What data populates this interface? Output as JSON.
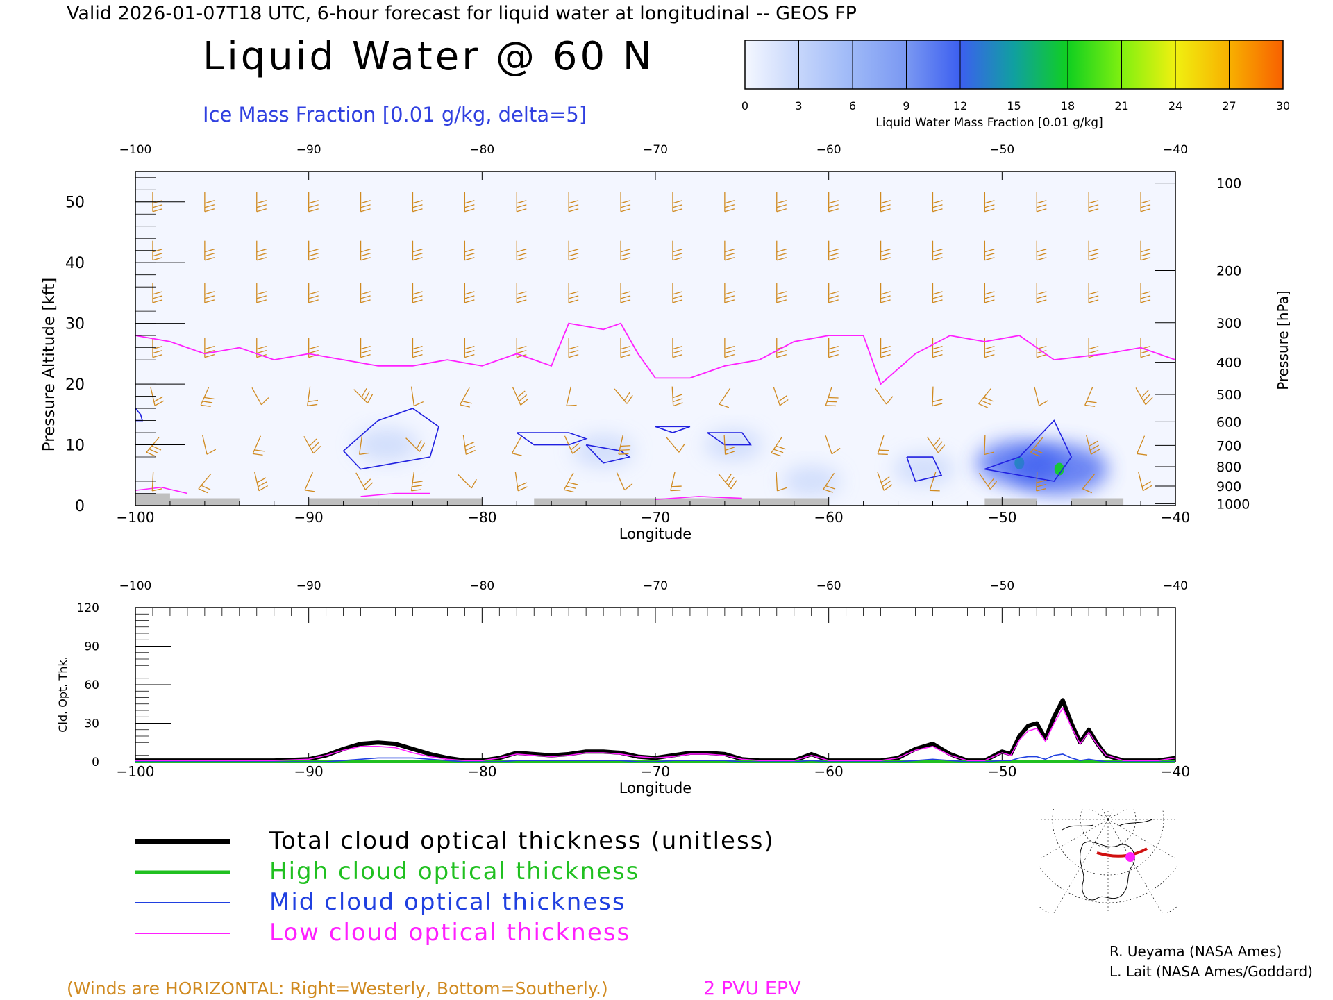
{
  "header": {
    "valid_line": "Valid 2026-01-07T18 UTC, 6-hour forecast for liquid water at longitudinal -- GEOS FP",
    "title": "Liquid Water @ 60 N",
    "subtitle": "Ice Mass Fraction [0.01 g/kg, delta=5]"
  },
  "colorbar": {
    "label": "Liquid Water Mass Fraction [0.01 g/kg]",
    "ticks": [
      "0",
      "3",
      "6",
      "9",
      "12",
      "15",
      "18",
      "21",
      "24",
      "27",
      "30"
    ],
    "colors": [
      "#f4f7ff",
      "#c6d6fb",
      "#9db8f7",
      "#7a98f2",
      "#3c5ff0",
      "#10a0a0",
      "#10cf20",
      "#80f010",
      "#f0f010",
      "#f8b000",
      "#f86000"
    ]
  },
  "chart_data": [
    {
      "type": "heatmap",
      "xlabel": "Longitude",
      "ylabel": "Pressure Altitude [kft]",
      "ylabel_right": "Pressure [hPa]",
      "xlim": [
        -100,
        -40
      ],
      "ylim": [
        0,
        55
      ],
      "xticks": [
        "−100",
        "−90",
        "−80",
        "−70",
        "−60",
        "−50",
        "−40"
      ],
      "yticks": [
        "0",
        "10",
        "20",
        "30",
        "40",
        "50"
      ],
      "pressure_ticks": [
        "100",
        "200",
        "300",
        "400",
        "500",
        "600",
        "700",
        "800",
        "900",
        "1000"
      ],
      "pressure_tick_kft": [
        53.1,
        38.7,
        30.1,
        23.6,
        18.3,
        13.8,
        9.9,
        6.4,
        3.2,
        0.3
      ],
      "epv_2pvu_kft": [
        [
          -100,
          28
        ],
        [
          -98,
          27
        ],
        [
          -96,
          25
        ],
        [
          -94,
          26
        ],
        [
          -92,
          24
        ],
        [
          -90,
          25
        ],
        [
          -88,
          24
        ],
        [
          -86,
          23
        ],
        [
          -84,
          23
        ],
        [
          -82,
          24
        ],
        [
          -80,
          23
        ],
        [
          -78,
          25
        ],
        [
          -76,
          23
        ],
        [
          -75,
          30
        ],
        [
          -73,
          29
        ],
        [
          -72,
          30
        ],
        [
          -71,
          25
        ],
        [
          -70,
          21
        ],
        [
          -68,
          21
        ],
        [
          -66,
          23
        ],
        [
          -64,
          24
        ],
        [
          -62,
          27
        ],
        [
          -60,
          28
        ],
        [
          -58,
          28
        ],
        [
          -57,
          20
        ],
        [
          -55,
          25
        ],
        [
          -53,
          28
        ],
        [
          -51,
          27
        ],
        [
          -49,
          28
        ],
        [
          -47,
          24
        ],
        [
          -44,
          25
        ],
        [
          -42,
          26
        ],
        [
          -40,
          24
        ]
      ],
      "ice_contours": [
        {
          "lon": [
            -88,
            -86,
            -84,
            -82.5,
            -83,
            -85,
            -87,
            -88
          ],
          "kft": [
            9,
            14,
            16,
            13,
            8,
            7,
            6,
            9
          ]
        },
        {
          "lon": [
            -78,
            -75,
            -74,
            -75,
            -77,
            -78
          ],
          "kft": [
            12,
            12,
            11,
            10,
            10,
            12
          ]
        },
        {
          "lon": [
            -74,
            -72,
            -71.5,
            -73,
            -74
          ],
          "kft": [
            10,
            9,
            8,
            7,
            10
          ]
        },
        {
          "lon": [
            -70,
            -68,
            -69,
            -70
          ],
          "kft": [
            13,
            13,
            12,
            13
          ]
        },
        {
          "lon": [
            -67,
            -65,
            -64.5,
            -66,
            -67
          ],
          "kft": [
            12,
            12,
            10,
            10,
            12
          ]
        },
        {
          "lon": [
            -55.5,
            -54,
            -53.5,
            -55,
            -55.5
          ],
          "kft": [
            8,
            8,
            5,
            4,
            8
          ]
        },
        {
          "lon": [
            -51,
            -49,
            -47,
            -46,
            -47,
            -49,
            -51
          ],
          "kft": [
            6,
            8,
            14,
            8,
            4,
            5,
            6
          ]
        },
        {
          "lon": [
            -100,
            -99.7,
            -99.6,
            -100
          ],
          "kft": [
            16,
            15,
            14,
            14
          ]
        }
      ],
      "liquid_blobs": [
        {
          "lon": -85.5,
          "kft": 10,
          "value": 4
        },
        {
          "lon": -73,
          "kft": 9,
          "value": 3
        },
        {
          "lon": -65.5,
          "kft": 10,
          "value": 2
        },
        {
          "lon": -54.5,
          "kft": 6,
          "value": 3
        },
        {
          "lon": -49,
          "kft": 7,
          "value": 12
        },
        {
          "lon": -46.7,
          "kft": 6,
          "value": 16
        },
        {
          "lon": -61,
          "kft": 4,
          "value": 2
        }
      ],
      "winds": {
        "lons": [
          -99,
          -96,
          -93,
          -90,
          -87,
          -84,
          -81,
          -78,
          -75,
          -72,
          -69,
          -66,
          -63,
          -60,
          -57,
          -54,
          -51,
          -48,
          -45,
          -42
        ],
        "kfts": [
          50,
          42,
          35,
          26,
          18,
          10,
          4
        ]
      },
      "footnote": "(Winds are HORIZONTAL: Right=Westerly, Bottom=Southerly.)",
      "epv_label": "2 PVU EPV"
    },
    {
      "type": "line",
      "xlabel": "Longitude",
      "ylabel": "Cld. Opt. Thk.",
      "xlim": [
        -100,
        -40
      ],
      "ylim": [
        0,
        120
      ],
      "xticks": [
        "−100",
        "−90",
        "−80",
        "−70",
        "−60",
        "−50",
        "−40"
      ],
      "yticks": [
        "0",
        "30",
        "60",
        "90",
        "120"
      ],
      "x": [
        -100,
        -98,
        -96,
        -94,
        -92,
        -90,
        -89,
        -88,
        -87,
        -86,
        -85,
        -84,
        -83,
        -82,
        -81,
        -80,
        -79,
        -78,
        -77,
        -76,
        -75,
        -74,
        -73,
        -72,
        -71,
        -70,
        -69,
        -68,
        -67,
        -66,
        -65,
        -64,
        -63,
        -62,
        -61,
        -60,
        -59,
        -58,
        -57,
        -56,
        -55,
        -54,
        -53,
        -52,
        -51,
        -50,
        -49.5,
        -49,
        -48.5,
        -48,
        -47.5,
        -47,
        -46.5,
        -46,
        -45.5,
        -45,
        -44.5,
        -44,
        -43,
        -42,
        -41,
        -40
      ],
      "series": [
        {
          "name": "Total cloud optical thickness (unitless)",
          "color": "#000000",
          "values": [
            1,
            1,
            1,
            1,
            1,
            2,
            5,
            10,
            14,
            15,
            14,
            10,
            6,
            3,
            1,
            1,
            3,
            7,
            6,
            5,
            6,
            8,
            8,
            7,
            4,
            3,
            5,
            7,
            7,
            6,
            2,
            1,
            1,
            1,
            6,
            1,
            1,
            1,
            1,
            3,
            10,
            14,
            6,
            1,
            1,
            8,
            6,
            20,
            28,
            30,
            18,
            35,
            48,
            30,
            15,
            25,
            14,
            5,
            1,
            1,
            1,
            3
          ]
        },
        {
          "name": "High cloud optical thickness",
          "color": "#20c020",
          "values": [
            0,
            0,
            0,
            0,
            0,
            0,
            0,
            0,
            0,
            0,
            0,
            0,
            0,
            0,
            0,
            0,
            0,
            0,
            0,
            0,
            0,
            0,
            0,
            0,
            0,
            0,
            0,
            0,
            0,
            0,
            0,
            0,
            0,
            0,
            0,
            0,
            0,
            0,
            0,
            0,
            0,
            0,
            0,
            0,
            0,
            0,
            0,
            0,
            0,
            0,
            0,
            0,
            0,
            0,
            0,
            0,
            0,
            0,
            0,
            0,
            0,
            0
          ]
        },
        {
          "name": "Mid cloud optical thickness",
          "color": "#2040e0",
          "values": [
            0,
            0,
            0,
            0,
            0,
            0,
            0,
            1,
            2,
            3,
            3,
            3,
            2,
            1,
            0,
            0,
            0,
            1,
            1,
            1,
            1,
            1,
            1,
            1,
            0,
            0,
            1,
            1,
            1,
            1,
            0,
            0,
            0,
            0,
            1,
            0,
            0,
            0,
            0,
            0,
            1,
            2,
            1,
            0,
            0,
            1,
            1,
            3,
            4,
            4,
            2,
            5,
            6,
            3,
            1,
            2,
            1,
            0,
            0,
            0,
            0,
            0
          ]
        },
        {
          "name": "Low cloud optical thickness",
          "color": "#ff20ff",
          "values": [
            1,
            1,
            1,
            1,
            1,
            2,
            5,
            9,
            12,
            12,
            11,
            7,
            4,
            2,
            1,
            1,
            3,
            6,
            5,
            4,
            5,
            7,
            7,
            6,
            4,
            3,
            4,
            6,
            6,
            5,
            2,
            1,
            1,
            1,
            5,
            1,
            1,
            1,
            1,
            3,
            9,
            12,
            5,
            1,
            1,
            7,
            5,
            17,
            24,
            26,
            16,
            30,
            42,
            27,
            14,
            23,
            13,
            5,
            1,
            1,
            1,
            3
          ]
        }
      ]
    }
  ],
  "legend": [
    {
      "label": "Total cloud optical thickness (unitless)",
      "color": "#000000",
      "text_color": "#000000"
    },
    {
      "label": "High cloud optical thickness",
      "color": "#20c020",
      "text_color": "#20c020"
    },
    {
      "label": "Mid cloud optical thickness",
      "color": "#2040e0",
      "text_color": "#2040e0"
    },
    {
      "label": "Low cloud optical thickness",
      "color": "#ff20ff",
      "text_color": "#ff20ff"
    }
  ],
  "credits": [
    "R. Ueyama (NASA Ames)",
    "L. Lait (NASA Ames/Goddard)"
  ],
  "colors": {
    "wind": "#d08a20",
    "epv": "#ff20ff",
    "ice": "#2020e0",
    "terrain": "#bfbfbf"
  }
}
